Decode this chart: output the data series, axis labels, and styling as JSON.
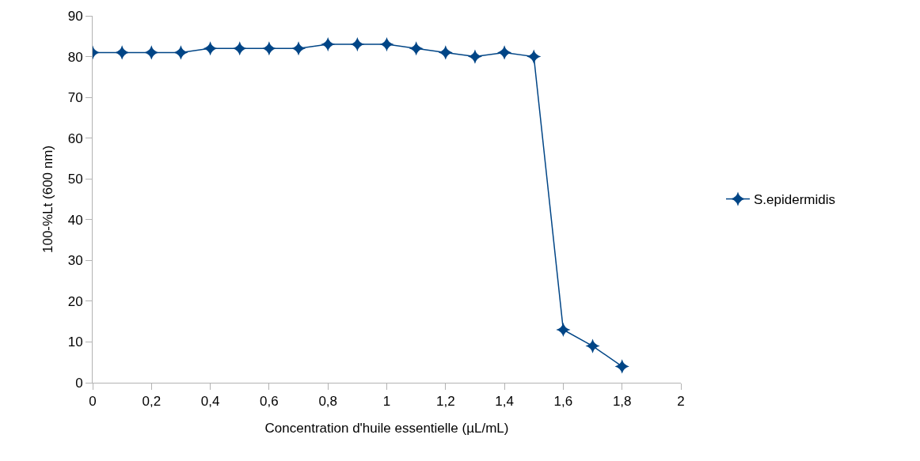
{
  "chart_data": {
    "type": "line",
    "xlabel": "Concentration d'huile essentielle (µL/mL)",
    "ylabel": "100-%Lt (600 nm)",
    "x": [
      0,
      0.1,
      0.2,
      0.3,
      0.4,
      0.5,
      0.6,
      0.7,
      0.8,
      0.9,
      1,
      1.1,
      1.2,
      1.3,
      1.4,
      1.5,
      1.6,
      1.7,
      1.8
    ],
    "series": [
      {
        "name": "S.epidermidis",
        "color": "#004586",
        "values": [
          81,
          81,
          81,
          81,
          82,
          82,
          82,
          82,
          83,
          83,
          83,
          82,
          81,
          80,
          81,
          80,
          13,
          9,
          4
        ]
      }
    ],
    "xlim": [
      0,
      2
    ],
    "xticks": [
      0,
      {
        "value": 0.2,
        "label": "0,2"
      },
      {
        "value": 0.4,
        "label": "0,4"
      },
      {
        "value": 0.6,
        "label": "0,6"
      },
      {
        "value": 0.8,
        "label": "0,8"
      },
      1,
      {
        "value": 1.2,
        "label": "1,2"
      },
      {
        "value": 1.4,
        "label": "1,4"
      },
      {
        "value": 1.6,
        "label": "1,6"
      },
      {
        "value": 1.8,
        "label": "1,8"
      },
      2
    ],
    "ylim": [
      0,
      90
    ],
    "yticks": [
      0,
      10,
      20,
      30,
      40,
      50,
      60,
      70,
      80,
      90
    ],
    "grid": false,
    "legend": "right",
    "marker": "star",
    "line_style": "solid"
  }
}
